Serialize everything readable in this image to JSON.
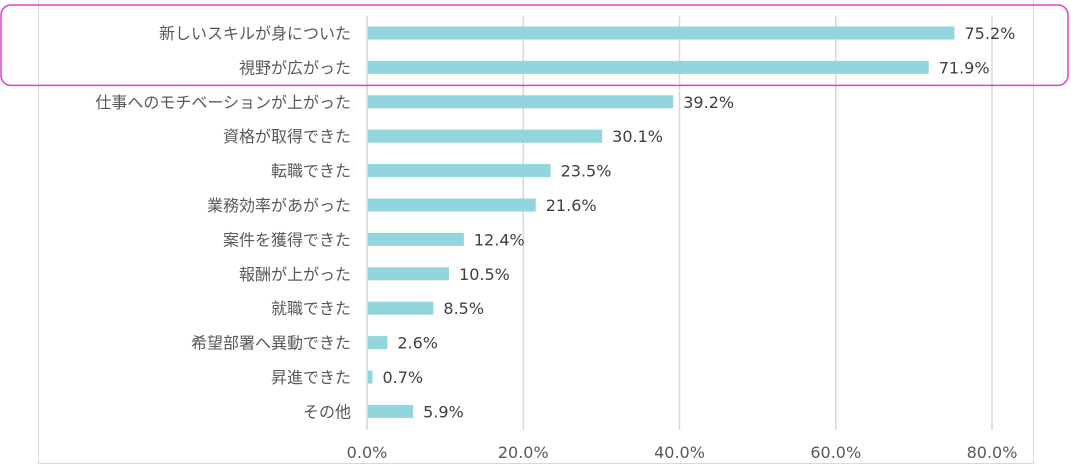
{
  "chart_data": {
    "type": "bar",
    "orientation": "horizontal",
    "title": "",
    "xlabel": "",
    "ylabel": "",
    "categories": [
      "新しいスキルが身についた",
      "視野が広がった",
      "仕事へのモチベーションが上がった",
      "資格が取得できた",
      "転職できた",
      "業務効率があがった",
      "案件を獲得できた",
      "報酬が上がった",
      "就職できた",
      "希望部署へ異動できた",
      "昇進できた",
      "その他"
    ],
    "values": [
      75.2,
      71.9,
      39.2,
      30.1,
      23.5,
      21.6,
      12.4,
      10.5,
      8.5,
      2.6,
      0.7,
      5.9
    ],
    "value_labels": [
      "75.2%",
      "71.9%",
      "39.2%",
      "30.1%",
      "23.5%",
      "21.6%",
      "12.4%",
      "10.5%",
      "8.5%",
      "2.6%",
      "0.7%",
      "5.9%"
    ],
    "xlim": [
      0,
      80
    ],
    "x_ticks": [
      0,
      20,
      40,
      60,
      80
    ],
    "x_tick_labels": [
      "0.0%",
      "20.0%",
      "40.0%",
      "60.0%",
      "80.0%"
    ],
    "grid": "vertical",
    "legend": "none",
    "highlighted_categories": [
      "新しいスキルが身についた",
      "視野が広がった"
    ],
    "colors": {
      "bar": "#92d5dc",
      "highlight": "#e040c8",
      "grid": "#d9d9d9",
      "label_text": "#595959",
      "value_text": "#404040"
    }
  }
}
